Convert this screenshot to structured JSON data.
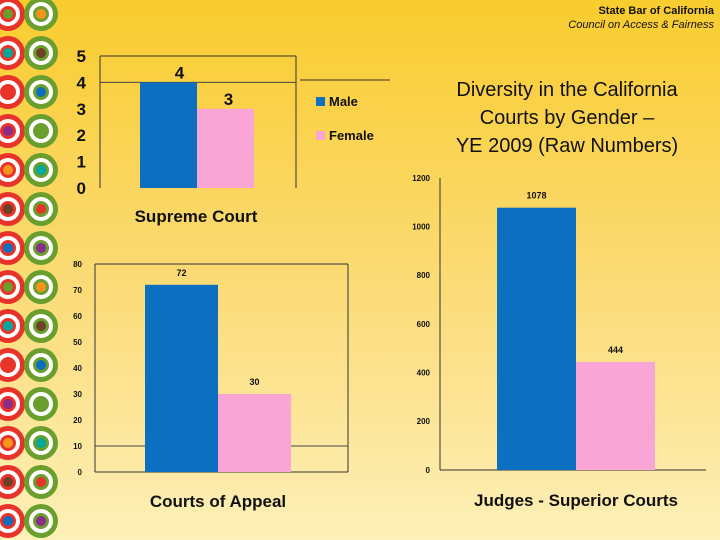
{
  "header": {
    "org": "State Bar of California",
    "council": "Council  on Access & Fairness"
  },
  "title": {
    "line1": "Diversity in the California",
    "line2": "Courts by Gender –",
    "line3": "YE 2009 (Raw Numbers)"
  },
  "colors": {
    "male": "#0d6fc0",
    "female": "#f9a6d6",
    "ring_palette": [
      "#e8332a",
      "#0d6fc0",
      "#8b2b8c",
      "#6a9f2e",
      "#f7941d",
      "#00a99d",
      "#6b4226"
    ]
  },
  "chart_data": [
    {
      "type": "bar",
      "title": "Supreme Court",
      "series": [
        {
          "name": "Male",
          "values": [
            4
          ]
        },
        {
          "name": "Female",
          "values": [
            3
          ]
        }
      ],
      "data_labels": [
        "4",
        "3"
      ],
      "ylim": [
        0,
        5
      ],
      "yticks": [
        "0",
        "1",
        "2",
        "3",
        "4",
        "5"
      ],
      "legend": "right",
      "grid": true
    },
    {
      "type": "bar",
      "title": "Courts of Appeal",
      "series": [
        {
          "name": "Male",
          "values": [
            72
          ]
        },
        {
          "name": "Female",
          "values": [
            30
          ]
        }
      ],
      "data_labels": [
        "72",
        "30"
      ],
      "ylim": [
        0,
        80
      ],
      "yticks": [
        "0",
        "10",
        "20",
        "30",
        "40",
        "50",
        "60",
        "70",
        "80"
      ],
      "grid": true
    },
    {
      "type": "bar",
      "title": "Judges - Superior Courts",
      "series": [
        {
          "name": "Male",
          "values": [
            1078
          ]
        },
        {
          "name": "Female",
          "values": [
            444
          ]
        }
      ],
      "data_labels": [
        "1078",
        "444"
      ],
      "ylim": [
        0,
        1200
      ],
      "yticks": [
        "0",
        "200",
        "400",
        "600",
        "800",
        "1000",
        "1200"
      ],
      "grid": false
    }
  ]
}
